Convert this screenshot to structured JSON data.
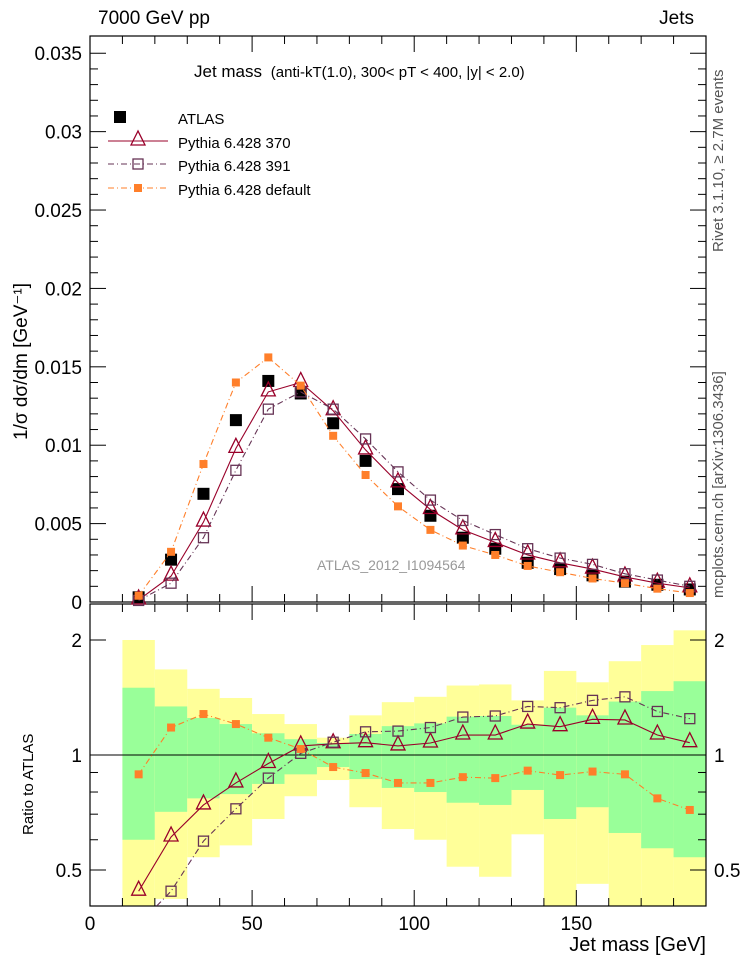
{
  "header": {
    "left": "7000 GeV pp",
    "right": "Jets"
  },
  "side_labels": {
    "rivet": "Rivet 3.1.10, ≥ 2.7M events",
    "mcplots": "mcplots.cern.ch [arXiv:1306.3436]"
  },
  "watermark": "ATLAS_2012_I1094564",
  "colors": {
    "atlas": "#000000",
    "p370": "#99002a",
    "p391": "#663355",
    "default": "#ff7f2a",
    "band_outer": "#ffff99",
    "band_inner": "#99ff99"
  },
  "chart_data": [
    {
      "type": "scatter",
      "title_main": "Jet mass",
      "title_sub": "(anti-kT(1.0), 300< pT < 400, |y| < 2.0)",
      "xlabel": "Jet mass [GeV]",
      "ylabel": "1/σ dσ/dm [GeV⁻¹]",
      "xlim": [
        0,
        190
      ],
      "ylim": [
        0,
        0.0361
      ],
      "yticks": [
        "0",
        "0.005",
        "0.01",
        "0.015",
        "0.02",
        "0.025",
        "0.03",
        "0.035"
      ],
      "ytick_values": [
        0,
        0.005,
        0.01,
        0.015,
        0.02,
        0.025,
        0.03,
        0.035
      ],
      "legend_placement": "top-left",
      "x": [
        15,
        25,
        35,
        45,
        55,
        65,
        75,
        85,
        95,
        105,
        115,
        125,
        135,
        145,
        155,
        165,
        175,
        185
      ],
      "series": [
        {
          "name": "ATLAS",
          "key": "atlas",
          "values": [
            0.0003,
            0.0027,
            0.0069,
            0.0116,
            0.0141,
            0.0133,
            0.0114,
            0.009,
            0.0072,
            0.0055,
            0.0041,
            0.0034,
            0.0025,
            0.0021,
            0.0017,
            0.0013,
            0.0011,
            0.0008
          ]
        },
        {
          "name": "Pythia 6.428 370",
          "key": "p370",
          "values": [
            0.00013,
            0.00165,
            0.0051,
            0.0098,
            0.0134,
            0.014,
            0.0122,
            0.0097,
            0.0076,
            0.0059,
            0.0046,
            0.0038,
            0.003,
            0.0025,
            0.0021,
            0.0016,
            0.0012,
            0.0009
          ]
        },
        {
          "name": "Pythia 6.428 391",
          "key": "p391",
          "values": [
            0.0001,
            0.0012,
            0.0041,
            0.0084,
            0.0123,
            0.0134,
            0.0123,
            0.0104,
            0.0083,
            0.0065,
            0.0052,
            0.0043,
            0.0034,
            0.0028,
            0.0024,
            0.0018,
            0.0014,
            0.001
          ]
        },
        {
          "name": "Pythia 6.428 default",
          "key": "default",
          "values": [
            0.0004,
            0.0032,
            0.0088,
            0.014,
            0.0156,
            0.0138,
            0.0106,
            0.0081,
            0.0061,
            0.0046,
            0.0036,
            0.003,
            0.0023,
            0.0019,
            0.0015,
            0.0012,
            0.00085,
            0.00057
          ]
        }
      ]
    },
    {
      "type": "line",
      "ylabel": "Ratio to ATLAS",
      "xlabel": "Jet mass [GeV]",
      "xlim": [
        0,
        190
      ],
      "ylim": [
        0.4,
        2.48
      ],
      "yscale": "log",
      "xticks": [
        "0",
        "50",
        "100",
        "150"
      ],
      "xtick_values": [
        0,
        50,
        100,
        150
      ],
      "yticks": [
        "0.5",
        "1",
        "2"
      ],
      "ytick_values": [
        0.5,
        1,
        2
      ],
      "bin_edges": [
        10,
        20,
        30,
        40,
        50,
        60,
        70,
        80,
        90,
        100,
        110,
        120,
        130,
        140,
        150,
        160,
        170,
        180,
        190
      ],
      "band_outer": {
        "upper": [
          2.0,
          1.675,
          1.49,
          1.41,
          1.28,
          1.205,
          1.11,
          1.27,
          1.375,
          1.42,
          1.52,
          1.53,
          1.39,
          1.66,
          1.55,
          1.76,
          1.94,
          2.12
        ],
        "lower": [
          0.4,
          0.42,
          0.54,
          0.58,
          0.68,
          0.78,
          0.86,
          0.73,
          0.64,
          0.6,
          0.51,
          0.48,
          0.62,
          0.4,
          0.46,
          0.4,
          0.4,
          0.4
        ]
      },
      "band_inner": {
        "upper": [
          1.5,
          1.34,
          1.25,
          1.205,
          1.14,
          1.1,
          1.075,
          1.135,
          1.19,
          1.21,
          1.26,
          1.265,
          1.2,
          1.33,
          1.27,
          1.38,
          1.47,
          1.56
        ],
        "lower": [
          0.6,
          0.71,
          0.77,
          0.79,
          0.84,
          0.89,
          0.93,
          0.865,
          0.82,
          0.8,
          0.75,
          0.74,
          0.81,
          0.68,
          0.73,
          0.625,
          0.57,
          0.54
        ]
      },
      "x": [
        15,
        25,
        35,
        45,
        55,
        65,
        75,
        85,
        95,
        105,
        115,
        125,
        135,
        145,
        155,
        165,
        175,
        185
      ],
      "series": [
        {
          "name": "Pythia 6.428 370",
          "key": "p370",
          "values": [
            0.44,
            0.61,
            0.74,
            0.845,
            0.95,
            1.056,
            1.07,
            1.077,
            1.056,
            1.075,
            1.128,
            1.128,
            1.205,
            1.186,
            1.24,
            1.235,
            1.128,
            1.077
          ]
        },
        {
          "name": "Pythia 6.428 391",
          "key": "p391",
          "values": [
            0.36,
            0.44,
            0.595,
            0.723,
            0.87,
            1.01,
            1.08,
            1.15,
            1.155,
            1.18,
            1.257,
            1.265,
            1.34,
            1.33,
            1.39,
            1.42,
            1.3,
            1.245
          ]
        },
        {
          "name": "Pythia 6.428 default",
          "key": "default",
          "values": [
            0.89,
            1.18,
            1.28,
            1.205,
            1.11,
            1.037,
            0.93,
            0.897,
            0.845,
            0.845,
            0.875,
            0.87,
            0.91,
            0.886,
            0.905,
            0.89,
            0.77,
            0.718
          ]
        }
      ]
    }
  ]
}
